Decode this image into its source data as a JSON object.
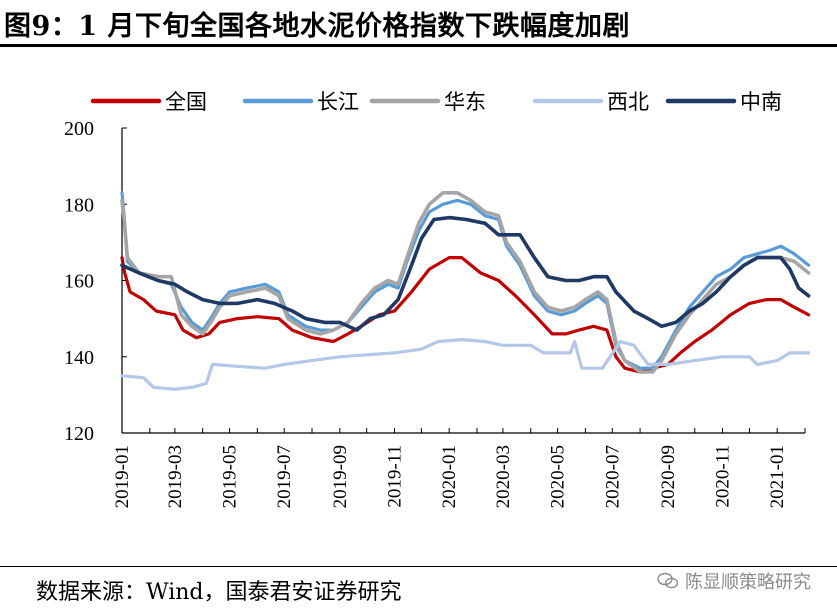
{
  "figure": {
    "title": "图9：1 月下旬全国各地水泥价格指数下跌幅度加剧",
    "source": "数据来源：Wind，国泰君安证券研究",
    "watermark": "陈显顺策略研究"
  },
  "chart_data": {
    "type": "line",
    "ylim": [
      120,
      200
    ],
    "yticks": [
      120,
      140,
      160,
      180,
      200
    ],
    "xlim": [
      "2019-01",
      "2021-02"
    ],
    "xticks": [
      "2019-01",
      "2019-03",
      "2019-05",
      "2019-07",
      "2019-09",
      "2019-11",
      "2020-01",
      "2020-03",
      "2020-05",
      "2020-07",
      "2020-09",
      "2020-11",
      "2021-01"
    ],
    "grid": false,
    "legend_position": "top",
    "series": [
      {
        "name": "全国",
        "color": "#c00000",
        "width": 3.2,
        "points": [
          [
            "2019-01-01",
            166
          ],
          [
            "2019-01-04",
            162
          ],
          [
            "2019-01-10",
            157
          ],
          [
            "2019-01-25",
            155
          ],
          [
            "2019-02-08",
            152
          ],
          [
            "2019-03-01",
            151
          ],
          [
            "2019-03-10",
            147
          ],
          [
            "2019-03-25",
            145
          ],
          [
            "2019-04-08",
            146
          ],
          [
            "2019-04-20",
            149
          ],
          [
            "2019-05-10",
            150
          ],
          [
            "2019-06-01",
            150.5
          ],
          [
            "2019-06-25",
            150
          ],
          [
            "2019-07-10",
            147
          ],
          [
            "2019-08-01",
            145
          ],
          [
            "2019-08-25",
            144
          ],
          [
            "2019-09-10",
            146
          ],
          [
            "2019-09-25",
            148
          ],
          [
            "2019-10-15",
            151
          ],
          [
            "2019-11-01",
            152
          ],
          [
            "2019-11-20",
            157
          ],
          [
            "2019-12-10",
            163
          ],
          [
            "2020-01-01",
            166
          ],
          [
            "2020-01-15",
            166
          ],
          [
            "2020-02-05",
            162
          ],
          [
            "2020-02-25",
            160
          ],
          [
            "2020-03-15",
            156
          ],
          [
            "2020-04-05",
            151
          ],
          [
            "2020-04-25",
            146
          ],
          [
            "2020-05-10",
            146
          ],
          [
            "2020-05-25",
            147
          ],
          [
            "2020-06-10",
            148
          ],
          [
            "2020-06-25",
            147
          ],
          [
            "2020-07-05",
            140
          ],
          [
            "2020-07-15",
            137
          ],
          [
            "2020-08-01",
            136
          ],
          [
            "2020-08-15",
            137
          ],
          [
            "2020-09-01",
            138
          ],
          [
            "2020-09-15",
            141
          ],
          [
            "2020-10-01",
            144
          ],
          [
            "2020-10-20",
            147
          ],
          [
            "2020-11-10",
            151
          ],
          [
            "2020-12-01",
            154
          ],
          [
            "2020-12-20",
            155
          ],
          [
            "2021-01-05",
            155
          ],
          [
            "2021-01-20",
            153
          ],
          [
            "2021-02-05",
            151
          ]
        ]
      },
      {
        "name": "长江",
        "color": "#5b9bd5",
        "width": 3.2,
        "points": [
          [
            "2019-01-01",
            183
          ],
          [
            "2019-01-03",
            178
          ],
          [
            "2019-01-07",
            165
          ],
          [
            "2019-01-20",
            162
          ],
          [
            "2019-02-10",
            160
          ],
          [
            "2019-02-25",
            159
          ],
          [
            "2019-03-08",
            153
          ],
          [
            "2019-03-20",
            149
          ],
          [
            "2019-04-01",
            147
          ],
          [
            "2019-04-10",
            150
          ],
          [
            "2019-04-20",
            154
          ],
          [
            "2019-05-01",
            157
          ],
          [
            "2019-05-20",
            158
          ],
          [
            "2019-06-10",
            159
          ],
          [
            "2019-06-25",
            157
          ],
          [
            "2019-07-05",
            151
          ],
          [
            "2019-07-25",
            148
          ],
          [
            "2019-08-10",
            147
          ],
          [
            "2019-08-25",
            147
          ],
          [
            "2019-09-10",
            149
          ],
          [
            "2019-09-25",
            153
          ],
          [
            "2019-10-10",
            157
          ],
          [
            "2019-10-25",
            159
          ],
          [
            "2019-11-05",
            158
          ],
          [
            "2019-11-15",
            165
          ],
          [
            "2019-11-28",
            173
          ],
          [
            "2019-12-10",
            178
          ],
          [
            "2019-12-25",
            180
          ],
          [
            "2020-01-10",
            181
          ],
          [
            "2020-01-25",
            180
          ],
          [
            "2020-02-10",
            177
          ],
          [
            "2020-02-25",
            176
          ],
          [
            "2020-03-05",
            169
          ],
          [
            "2020-03-20",
            164
          ],
          [
            "2020-04-05",
            156
          ],
          [
            "2020-04-20",
            152
          ],
          [
            "2020-05-05",
            151
          ],
          [
            "2020-05-20",
            152
          ],
          [
            "2020-06-01",
            154
          ],
          [
            "2020-06-15",
            156
          ],
          [
            "2020-06-25",
            154
          ],
          [
            "2020-07-05",
            143
          ],
          [
            "2020-07-15",
            139
          ],
          [
            "2020-08-01",
            137
          ],
          [
            "2020-08-15",
            137
          ],
          [
            "2020-08-25",
            140
          ],
          [
            "2020-09-10",
            147
          ],
          [
            "2020-09-25",
            153
          ],
          [
            "2020-10-10",
            157
          ],
          [
            "2020-10-25",
            161
          ],
          [
            "2020-11-10",
            163
          ],
          [
            "2020-11-25",
            166
          ],
          [
            "2020-12-10",
            167
          ],
          [
            "2020-12-25",
            168
          ],
          [
            "2021-01-05",
            169
          ],
          [
            "2021-01-20",
            167
          ],
          [
            "2021-02-05",
            164
          ]
        ]
      },
      {
        "name": "华东",
        "color": "#a5a5a5",
        "width": 3.6,
        "points": [
          [
            "2019-01-01",
            181
          ],
          [
            "2019-01-03",
            177
          ],
          [
            "2019-01-07",
            166
          ],
          [
            "2019-01-20",
            162
          ],
          [
            "2019-02-10",
            161
          ],
          [
            "2019-02-25",
            161
          ],
          [
            "2019-03-08",
            151
          ],
          [
            "2019-03-20",
            148
          ],
          [
            "2019-04-01",
            146
          ],
          [
            "2019-04-10",
            149
          ],
          [
            "2019-04-20",
            153
          ],
          [
            "2019-05-01",
            156
          ],
          [
            "2019-05-20",
            157
          ],
          [
            "2019-06-10",
            158
          ],
          [
            "2019-06-25",
            156
          ],
          [
            "2019-07-05",
            150
          ],
          [
            "2019-07-25",
            147
          ],
          [
            "2019-08-10",
            146
          ],
          [
            "2019-08-25",
            147
          ],
          [
            "2019-09-10",
            149
          ],
          [
            "2019-09-25",
            154
          ],
          [
            "2019-10-10",
            158
          ],
          [
            "2019-10-25",
            160
          ],
          [
            "2019-11-05",
            159
          ],
          [
            "2019-11-15",
            166
          ],
          [
            "2019-11-28",
            175
          ],
          [
            "2019-12-10",
            180
          ],
          [
            "2019-12-25",
            183
          ],
          [
            "2020-01-10",
            183
          ],
          [
            "2020-01-25",
            181
          ],
          [
            "2020-02-10",
            178
          ],
          [
            "2020-02-25",
            177
          ],
          [
            "2020-03-05",
            170
          ],
          [
            "2020-03-20",
            165
          ],
          [
            "2020-04-05",
            157
          ],
          [
            "2020-04-20",
            153
          ],
          [
            "2020-05-05",
            152
          ],
          [
            "2020-05-20",
            153
          ],
          [
            "2020-06-01",
            155
          ],
          [
            "2020-06-15",
            157
          ],
          [
            "2020-06-25",
            155
          ],
          [
            "2020-07-05",
            144
          ],
          [
            "2020-07-15",
            139
          ],
          [
            "2020-08-01",
            136
          ],
          [
            "2020-08-15",
            136
          ],
          [
            "2020-08-25",
            139
          ],
          [
            "2020-09-10",
            146
          ],
          [
            "2020-09-25",
            151
          ],
          [
            "2020-10-10",
            155
          ],
          [
            "2020-10-25",
            159
          ],
          [
            "2020-11-10",
            161
          ],
          [
            "2020-11-25",
            164
          ],
          [
            "2020-12-10",
            166
          ],
          [
            "2020-12-25",
            166
          ],
          [
            "2021-01-05",
            166
          ],
          [
            "2021-01-20",
            165
          ],
          [
            "2021-02-05",
            162
          ]
        ]
      },
      {
        "name": "西北",
        "color": "#b4c7e7",
        "width": 3.2,
        "points": [
          [
            "2019-01-01",
            135
          ],
          [
            "2019-01-25",
            134.5
          ],
          [
            "2019-02-05",
            132
          ],
          [
            "2019-03-01",
            131.5
          ],
          [
            "2019-03-20",
            132
          ],
          [
            "2019-04-05",
            133
          ],
          [
            "2019-04-12",
            138
          ],
          [
            "2019-05-10",
            137.5
          ],
          [
            "2019-06-10",
            137
          ],
          [
            "2019-07-01",
            138
          ],
          [
            "2019-08-01",
            139
          ],
          [
            "2019-09-01",
            140
          ],
          [
            "2019-10-01",
            140.5
          ],
          [
            "2019-11-01",
            141
          ],
          [
            "2019-12-01",
            142
          ],
          [
            "2019-12-20",
            144
          ],
          [
            "2020-01-15",
            144.5
          ],
          [
            "2020-02-10",
            144
          ],
          [
            "2020-03-01",
            143
          ],
          [
            "2020-04-01",
            143
          ],
          [
            "2020-04-15",
            141
          ],
          [
            "2020-05-15",
            141
          ],
          [
            "2020-05-20",
            144
          ],
          [
            "2020-05-28",
            137
          ],
          [
            "2020-06-20",
            137
          ],
          [
            "2020-07-10",
            144
          ],
          [
            "2020-07-25",
            143
          ],
          [
            "2020-08-10",
            138
          ],
          [
            "2020-09-01",
            138
          ],
          [
            "2020-10-01",
            139
          ],
          [
            "2020-11-01",
            140
          ],
          [
            "2020-12-01",
            140
          ],
          [
            "2020-12-10",
            138
          ],
          [
            "2021-01-01",
            139
          ],
          [
            "2021-01-15",
            141
          ],
          [
            "2021-02-05",
            141
          ]
        ]
      },
      {
        "name": "中南",
        "color": "#1f3864",
        "width": 3.6,
        "points": [
          [
            "2019-01-01",
            164
          ],
          [
            "2019-01-20",
            162
          ],
          [
            "2019-02-10",
            160
          ],
          [
            "2019-03-01",
            159
          ],
          [
            "2019-03-15",
            157
          ],
          [
            "2019-04-01",
            155
          ],
          [
            "2019-04-20",
            154
          ],
          [
            "2019-05-10",
            154
          ],
          [
            "2019-06-01",
            155
          ],
          [
            "2019-06-20",
            154
          ],
          [
            "2019-07-10",
            152
          ],
          [
            "2019-07-25",
            150
          ],
          [
            "2019-08-15",
            149
          ],
          [
            "2019-09-01",
            149
          ],
          [
            "2019-09-20",
            147
          ],
          [
            "2019-10-05",
            150
          ],
          [
            "2019-10-20",
            151
          ],
          [
            "2019-11-05",
            155
          ],
          [
            "2019-11-20",
            164
          ],
          [
            "2019-12-01",
            171
          ],
          [
            "2019-12-15",
            176
          ],
          [
            "2020-01-01",
            176.5
          ],
          [
            "2020-01-20",
            176
          ],
          [
            "2020-02-10",
            175
          ],
          [
            "2020-02-25",
            172
          ],
          [
            "2020-03-20",
            172
          ],
          [
            "2020-04-05",
            166
          ],
          [
            "2020-04-20",
            161
          ],
          [
            "2020-05-10",
            160
          ],
          [
            "2020-05-25",
            160
          ],
          [
            "2020-06-10",
            161
          ],
          [
            "2020-06-25",
            161
          ],
          [
            "2020-07-05",
            157
          ],
          [
            "2020-07-25",
            152
          ],
          [
            "2020-08-10",
            150
          ],
          [
            "2020-08-25",
            148
          ],
          [
            "2020-09-10",
            149
          ],
          [
            "2020-09-25",
            152
          ],
          [
            "2020-10-10",
            154
          ],
          [
            "2020-10-25",
            157
          ],
          [
            "2020-11-10",
            161
          ],
          [
            "2020-11-25",
            164
          ],
          [
            "2020-12-10",
            166
          ],
          [
            "2020-12-25",
            166
          ],
          [
            "2021-01-05",
            166
          ],
          [
            "2021-01-15",
            163
          ],
          [
            "2021-01-25",
            158
          ],
          [
            "2021-02-05",
            156
          ]
        ]
      }
    ]
  }
}
